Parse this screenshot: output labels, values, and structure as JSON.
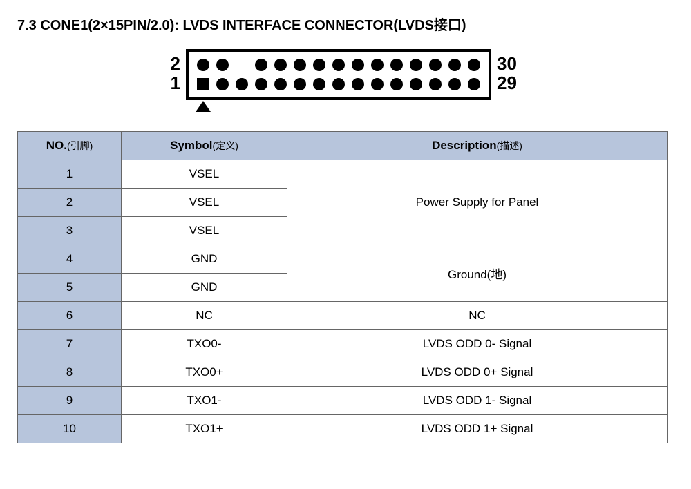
{
  "heading": "7.3 CONE1(2×15PIN/2.0): LVDS INTERFACE CONNECTOR(LVDS接口)",
  "diagram": {
    "label_top_left": "2",
    "label_bot_left": "1",
    "label_top_right": "30",
    "label_bot_right": "29",
    "cols": 15,
    "missing_top_col_index": 2,
    "pin_radius": 9,
    "pin_spacing": 28,
    "row_gap": 28,
    "frame_stroke": "#000000",
    "frame_stroke_width": 4,
    "pin_fill": "#000000",
    "label_fontsize": 26,
    "label_fontweight": "bold"
  },
  "columns": {
    "no": {
      "main": "NO.",
      "sub": "(引脚)"
    },
    "sym": {
      "main": "Symbol",
      "sub": "(定义)"
    },
    "desc": {
      "main": "Description",
      "sub": "(描述)"
    }
  },
  "colors": {
    "header_bg": "#b7c5dc",
    "border": "#666666",
    "text": "#000000",
    "page_bg": "#ffffff"
  },
  "rows": [
    {
      "no": "1",
      "symbol": "VSEL",
      "desc": "Power Supply for Panel",
      "desc_rowspan": 3
    },
    {
      "no": "2",
      "symbol": "VSEL"
    },
    {
      "no": "3",
      "symbol": "VSEL"
    },
    {
      "no": "4",
      "symbol": "GND",
      "desc": "Ground(地)",
      "desc_rowspan": 2
    },
    {
      "no": "5",
      "symbol": "GND"
    },
    {
      "no": "6",
      "symbol": "NC",
      "desc": "NC"
    },
    {
      "no": "7",
      "symbol": "TXO0-",
      "desc": "LVDS ODD 0- Signal"
    },
    {
      "no": "8",
      "symbol": "TXO0+",
      "desc": "LVDS ODD 0+ Signal"
    },
    {
      "no": "9",
      "symbol": "TXO1-",
      "desc": "LVDS ODD 1- Signal"
    },
    {
      "no": "10",
      "symbol": "TXO1+",
      "desc": "LVDS ODD 1+ Signal"
    }
  ]
}
